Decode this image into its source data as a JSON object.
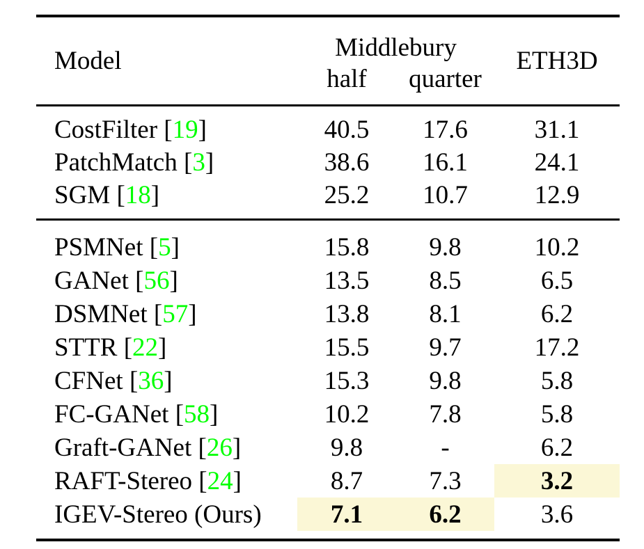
{
  "page": {
    "background": "#ffffff"
  },
  "colors": {
    "citation": "#00ff00",
    "highlight": "#fbf7d6",
    "text": "#000000",
    "rule": "#000000"
  },
  "table": {
    "header": {
      "model": "Model",
      "group": "Middlebury",
      "sub": [
        "half",
        "quarter"
      ],
      "eth3d": "ETH3D"
    },
    "rows": [
      {
        "model": "CostFilter",
        "cite": "19",
        "half": "40.5",
        "quarter": "17.6",
        "eth3d": "31.1",
        "bold": [],
        "highlight": []
      },
      {
        "model": "PatchMatch",
        "cite": "3",
        "half": "38.6",
        "quarter": "16.1",
        "eth3d": "24.1",
        "bold": [],
        "highlight": []
      },
      {
        "model": "SGM",
        "cite": "18",
        "half": "25.2",
        "quarter": "10.7",
        "eth3d": "12.9",
        "bold": [],
        "highlight": []
      },
      {
        "model": "PSMNet",
        "cite": "5",
        "half": "15.8",
        "quarter": "9.8",
        "eth3d": "10.2",
        "bold": [],
        "highlight": []
      },
      {
        "model": "GANet",
        "cite": "56",
        "half": "13.5",
        "quarter": "8.5",
        "eth3d": "6.5",
        "bold": [],
        "highlight": []
      },
      {
        "model": "DSMNet",
        "cite": "57",
        "half": "13.8",
        "quarter": "8.1",
        "eth3d": "6.2",
        "bold": [],
        "highlight": []
      },
      {
        "model": "STTR",
        "cite": "22",
        "half": "15.5",
        "quarter": "9.7",
        "eth3d": "17.2",
        "bold": [],
        "highlight": []
      },
      {
        "model": "CFNet",
        "cite": "36",
        "half": "15.3",
        "quarter": "9.8",
        "eth3d": "5.8",
        "bold": [],
        "highlight": []
      },
      {
        "model": "FC-GANet",
        "cite": "58",
        "half": "10.2",
        "quarter": "7.8",
        "eth3d": "5.8",
        "bold": [],
        "highlight": []
      },
      {
        "model": "Graft-GANet",
        "cite": "26",
        "half": "9.8",
        "quarter": "-",
        "eth3d": "6.2",
        "bold": [],
        "highlight": []
      },
      {
        "model": "RAFT-Stereo",
        "cite": "24",
        "half": "8.7",
        "quarter": "7.3",
        "eth3d": "3.2",
        "bold": [
          "eth3d"
        ],
        "highlight": [
          "eth3d"
        ]
      },
      {
        "model": "IGEV-Stereo (Ours)",
        "cite": null,
        "half": "7.1",
        "quarter": "6.2",
        "eth3d": "3.6",
        "bold": [
          "half",
          "quarter"
        ],
        "highlight": [
          "half",
          "quarter"
        ]
      }
    ]
  }
}
